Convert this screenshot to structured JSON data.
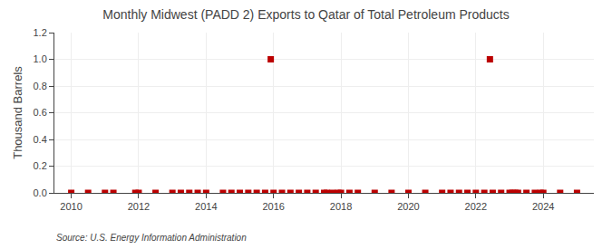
{
  "chart_data": {
    "type": "scatter",
    "title": "Monthly Midwest (PADD 2) Exports to Qatar of Total Petroleum Products",
    "ylabel": "Thousand Barrels",
    "annotations": [
      "Source: U.S. Energy Information Administration"
    ],
    "color": "#bb0000",
    "marker": "square",
    "grid": true,
    "xlim": [
      2009.5,
      2025.5
    ],
    "xticks": [
      2010,
      2012,
      2014,
      2016,
      2018,
      2020,
      2022,
      2024
    ],
    "ylim": [
      0.0,
      1.2
    ],
    "yticks": [
      {
        "value": 0.0,
        "label": "0.0"
      },
      0.2,
      0.4,
      0.6,
      0.8,
      {
        "value": 1.0,
        "label": "1.0"
      },
      1.2
    ],
    "x": [
      2010.0,
      2010.5,
      2011.0,
      2011.25,
      2011.9,
      2012.0,
      2012.5,
      2013.0,
      2013.25,
      2013.5,
      2013.75,
      2014.0,
      2014.5,
      2014.75,
      2015.0,
      2015.25,
      2015.5,
      2015.75,
      2015.917,
      2016.0,
      2016.25,
      2016.5,
      2016.75,
      2017.0,
      2017.25,
      2017.5,
      2017.583,
      2017.75,
      2017.917,
      2018.0,
      2018.25,
      2018.5,
      2019.0,
      2019.5,
      2020.0,
      2020.5,
      2021.0,
      2021.25,
      2021.5,
      2021.75,
      2022.0,
      2022.25,
      2022.417,
      2022.5,
      2022.75,
      2023.0,
      2023.083,
      2023.167,
      2023.25,
      2023.5,
      2023.75,
      2023.917,
      2024.0,
      2024.5,
      2025.0
    ],
    "values": [
      0.0,
      0.0,
      0.0,
      0.0,
      0.0,
      0.0,
      0.0,
      0.0,
      0.0,
      0.0,
      0.0,
      0.0,
      0.0,
      0.0,
      0.0,
      0.0,
      0.0,
      0.0,
      1.0,
      0.0,
      0.0,
      0.0,
      0.0,
      0.0,
      0.0,
      0.0,
      0.0,
      0.0,
      0.0,
      0.0,
      0.0,
      0.0,
      0.0,
      0.0,
      0.0,
      0.0,
      0.0,
      0.0,
      0.0,
      0.0,
      0.0,
      0.0,
      1.0,
      0.0,
      0.0,
      0.0,
      0.0,
      0.0,
      0.0,
      0.0,
      0.0,
      0.0,
      0.0,
      0.0,
      0.0
    ]
  }
}
